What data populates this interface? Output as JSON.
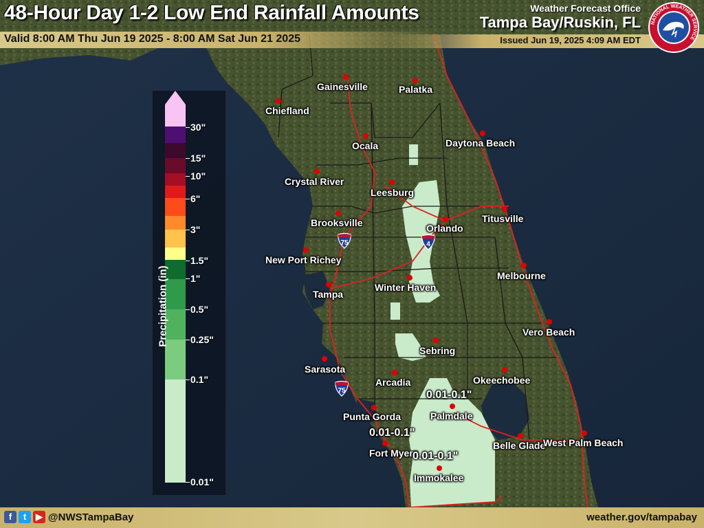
{
  "header": {
    "title": "48-Hour Day 1-2 Low End Rainfall Amounts",
    "valid": "Valid 8:00 AM Thu Jun 19 2025 - 8:00 AM Sat Jun 21 2025",
    "office_line": "Weather Forecast Office",
    "office_name": "Tampa Bay/Ruskin, FL",
    "issued": "Issued Jun 19, 2025 4:09 AM EDT",
    "logo_icon": "nws-logo-icon",
    "logo_ring_text": "NATIONAL WEATHER SERVICE"
  },
  "legend": {
    "title": "Precipitation (in)",
    "labels": [
      "30\"",
      "15\"",
      "10\"",
      "6\"",
      "3\"",
      "1.5\"",
      "1\"",
      "0.5\"",
      "0.25\"",
      "0.1\"",
      "0.01\""
    ],
    "colors": [
      "#f7c4f3",
      "#4e0f72",
      "#3d0a2e",
      "#6a0b2a",
      "#a50e24",
      "#e01a1a",
      "#ff4a1a",
      "#ff8a2a",
      "#ffc24a",
      "#ffff8a",
      "#0f6b2e",
      "#2e9a4a",
      "#4fb35e",
      "#7ccc80",
      "#a7dfa9",
      "#c9ebca"
    ]
  },
  "cities": [
    {
      "name": "Gainesville"
    },
    {
      "name": "Palatka"
    },
    {
      "name": "Chiefland"
    },
    {
      "name": "Ocala"
    },
    {
      "name": "Daytona Beach"
    },
    {
      "name": "Crystal River"
    },
    {
      "name": "Leesburg"
    },
    {
      "name": "Brooksville"
    },
    {
      "name": "Orlando"
    },
    {
      "name": "Titusville"
    },
    {
      "name": "New Port Richey"
    },
    {
      "name": "Melbourne"
    },
    {
      "name": "Winter Haven"
    },
    {
      "name": "Tampa"
    },
    {
      "name": "Vero Beach"
    },
    {
      "name": "Sebring"
    },
    {
      "name": "Sarasota"
    },
    {
      "name": "Arcadia"
    },
    {
      "name": "Okeechobee"
    },
    {
      "name": "Punta Gorda"
    },
    {
      "name": "Palmdale"
    },
    {
      "name": "Belle Glade"
    },
    {
      "name": "West Palm Beach"
    },
    {
      "name": "Fort Myers"
    },
    {
      "name": "Immokalee"
    }
  ],
  "amounts": [
    "0.01-0.1\"",
    "0.01-0.1\"",
    "0.01-0.1\""
  ],
  "highways": [
    "75",
    "4",
    "75"
  ],
  "footer": {
    "handle": "@NWSTampaBay",
    "website": "weather.gov/tampabay",
    "social_icons": [
      "facebook-icon",
      "twitter-icon",
      "youtube-icon"
    ]
  },
  "colors": {
    "ocean": "#1b2a3e",
    "land": "#3d4a2e",
    "rain_light": "#c9ebca",
    "roads": "#e02020",
    "banner_gold": "#c9b26a"
  }
}
